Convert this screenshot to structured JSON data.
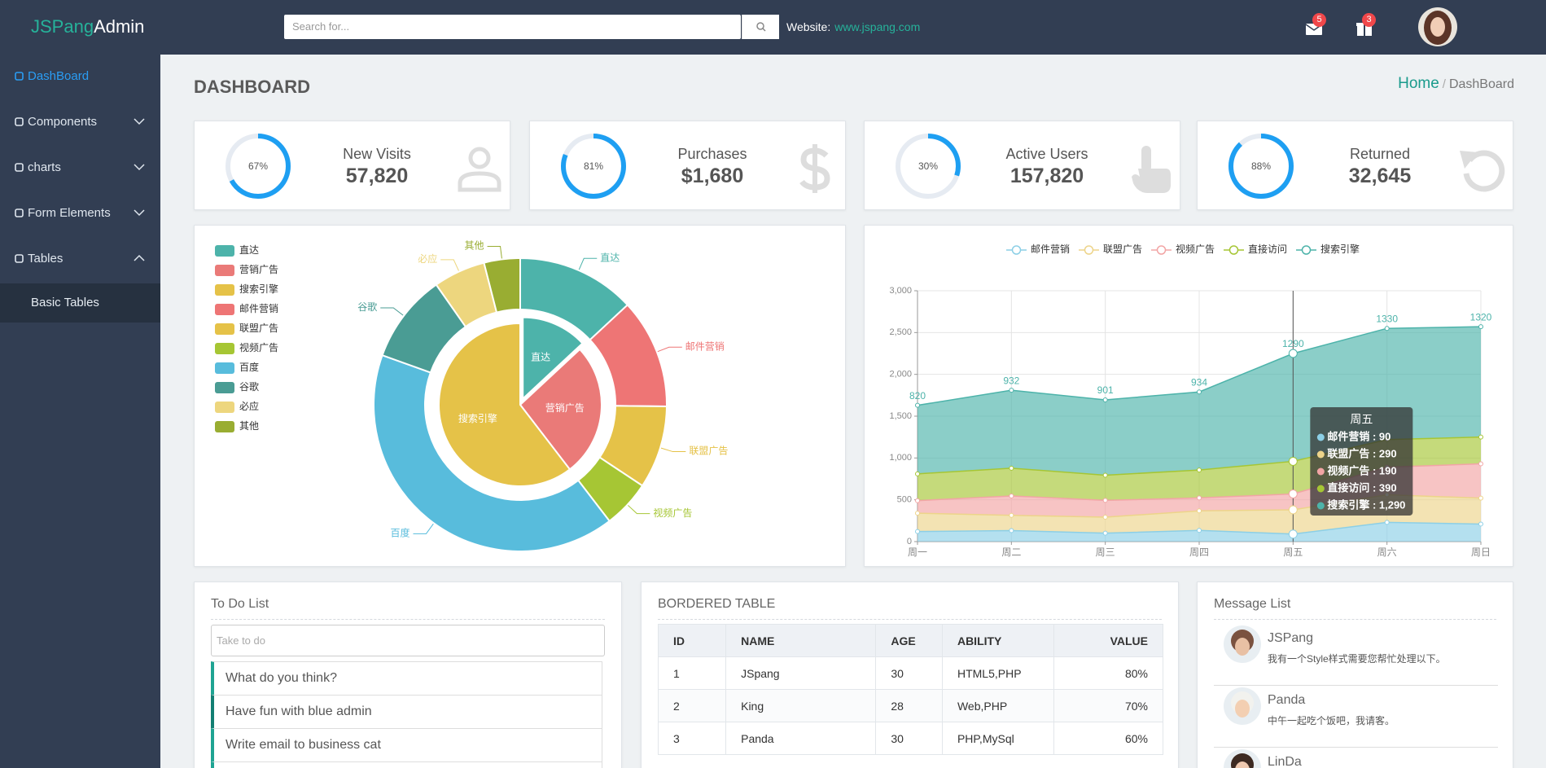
{
  "header": {
    "logo_a": "JSPang",
    "logo_b": "Admin",
    "search_placeholder": "Search for...",
    "website_label": "Website:",
    "website_link": "www.jspang.com",
    "mail_badge": "5",
    "gift_badge": "3"
  },
  "sidebar": {
    "items": [
      "DashBoard",
      "Components",
      "charts",
      "Form Elements",
      "Tables"
    ],
    "subitems": [
      "Basic Tables"
    ]
  },
  "page": {
    "title": "DASHBOARD",
    "breadcrumb_home": "Home",
    "breadcrumb_sep": "/",
    "breadcrumb_current": "DashBoard"
  },
  "stats": [
    {
      "label": "New Visits",
      "value": "57,820",
      "ring": {
        "value": 67,
        "label": "67%"
      }
    },
    {
      "label": "Purchases",
      "value": "$1,680",
      "ring": {
        "value": 81,
        "label": "81%"
      }
    },
    {
      "label": "Active Users",
      "value": "157,820",
      "ring": {
        "value": 30,
        "label": "30%"
      }
    },
    {
      "label": "Returned",
      "value": "32,645",
      "ring": {
        "value": 88,
        "label": "88%"
      }
    }
  ],
  "pie_chart": {
    "type": "pie",
    "inner": [
      {
        "name": "直达",
        "value": 335,
        "color": "#4db3aa",
        "selected": true
      },
      {
        "name": "营销广告",
        "value": 679,
        "color": "#ea7a78"
      },
      {
        "name": "搜索引擎",
        "value": 1548,
        "color": "#e5c248"
      }
    ],
    "outer": [
      {
        "name": "直达",
        "value": 335,
        "color": "#4db3aa"
      },
      {
        "name": "邮件营销",
        "value": 310,
        "color": "#ee7575"
      },
      {
        "name": "联盟广告",
        "value": 234,
        "color": "#e5c248"
      },
      {
        "name": "视频广告",
        "value": 135,
        "color": "#a6c634"
      },
      {
        "name": "百度",
        "value": 1048,
        "color": "#58bcdc"
      },
      {
        "name": "谷歌",
        "value": 251,
        "color": "#4a9c94"
      },
      {
        "name": "必应",
        "value": 147,
        "color": "#edd67e"
      },
      {
        "name": "其他",
        "value": 102,
        "color": "#99ad32"
      }
    ]
  },
  "line_chart": {
    "type": "line",
    "stacked": true,
    "categories": [
      "周一",
      "周二",
      "周三",
      "周四",
      "周五",
      "周六",
      "周日"
    ],
    "series": [
      {
        "name": "邮件营销",
        "color": "#8ccfe6",
        "values": [
          120,
          132,
          101,
          134,
          90,
          230,
          210
        ]
      },
      {
        "name": "联盟广告",
        "color": "#edd48a",
        "values": [
          220,
          182,
          191,
          234,
          290,
          330,
          310
        ]
      },
      {
        "name": "视频广告",
        "color": "#f2a5a5",
        "values": [
          150,
          232,
          201,
          154,
          190,
          330,
          410
        ]
      },
      {
        "name": "直接访问",
        "color": "#a6c634",
        "values": [
          320,
          332,
          301,
          334,
          390,
          330,
          320
        ]
      },
      {
        "name": "搜索引擎",
        "color": "#4db3aa",
        "values": [
          820,
          932,
          901,
          934,
          1290,
          1330,
          1320
        ],
        "show_labels": true
      }
    ],
    "ylim": [
      0,
      3000
    ],
    "yticks": [
      0,
      500,
      {
        "value": 1000,
        "label": "1,000"
      },
      {
        "value": 1500,
        "label": "1,500"
      },
      {
        "value": 2000,
        "label": "2,000"
      },
      {
        "value": 2500,
        "label": "2,500"
      },
      {
        "value": 3000,
        "label": "3,000"
      }
    ],
    "grid": true,
    "tooltip": {
      "title": "周五",
      "rows": [
        "邮件营销 : 90",
        "联盟广告 : 290",
        "视频广告 : 190",
        "直接访问 : 390",
        "搜索引擎 : 1,290"
      ]
    }
  },
  "todo": {
    "title": "To Do List",
    "placeholder": "Take to do",
    "items": [
      "What do you think?",
      "Have fun with blue admin",
      "Write email to business cat"
    ]
  },
  "table": {
    "title": "BORDERED TABLE",
    "header": [
      "ID",
      "NAME",
      "AGE",
      "ABILITY",
      "VALUE"
    ],
    "rows": [
      [
        "1",
        "JSpang",
        "30",
        "HTML5,PHP",
        "80%"
      ],
      [
        "2",
        "King",
        "28",
        "Web,PHP",
        "70%"
      ],
      [
        "3",
        "Panda",
        "30",
        "PHP,MySql",
        "60%"
      ]
    ]
  },
  "messages": {
    "title": "Message List",
    "items": [
      {
        "name": "JSPang",
        "text": "我有一个Style样式需要您帮忙处理以下。"
      },
      {
        "name": "Panda",
        "text": "中午一起吃个饭吧，我请客。"
      },
      {
        "name": "LinDa"
      }
    ]
  }
}
